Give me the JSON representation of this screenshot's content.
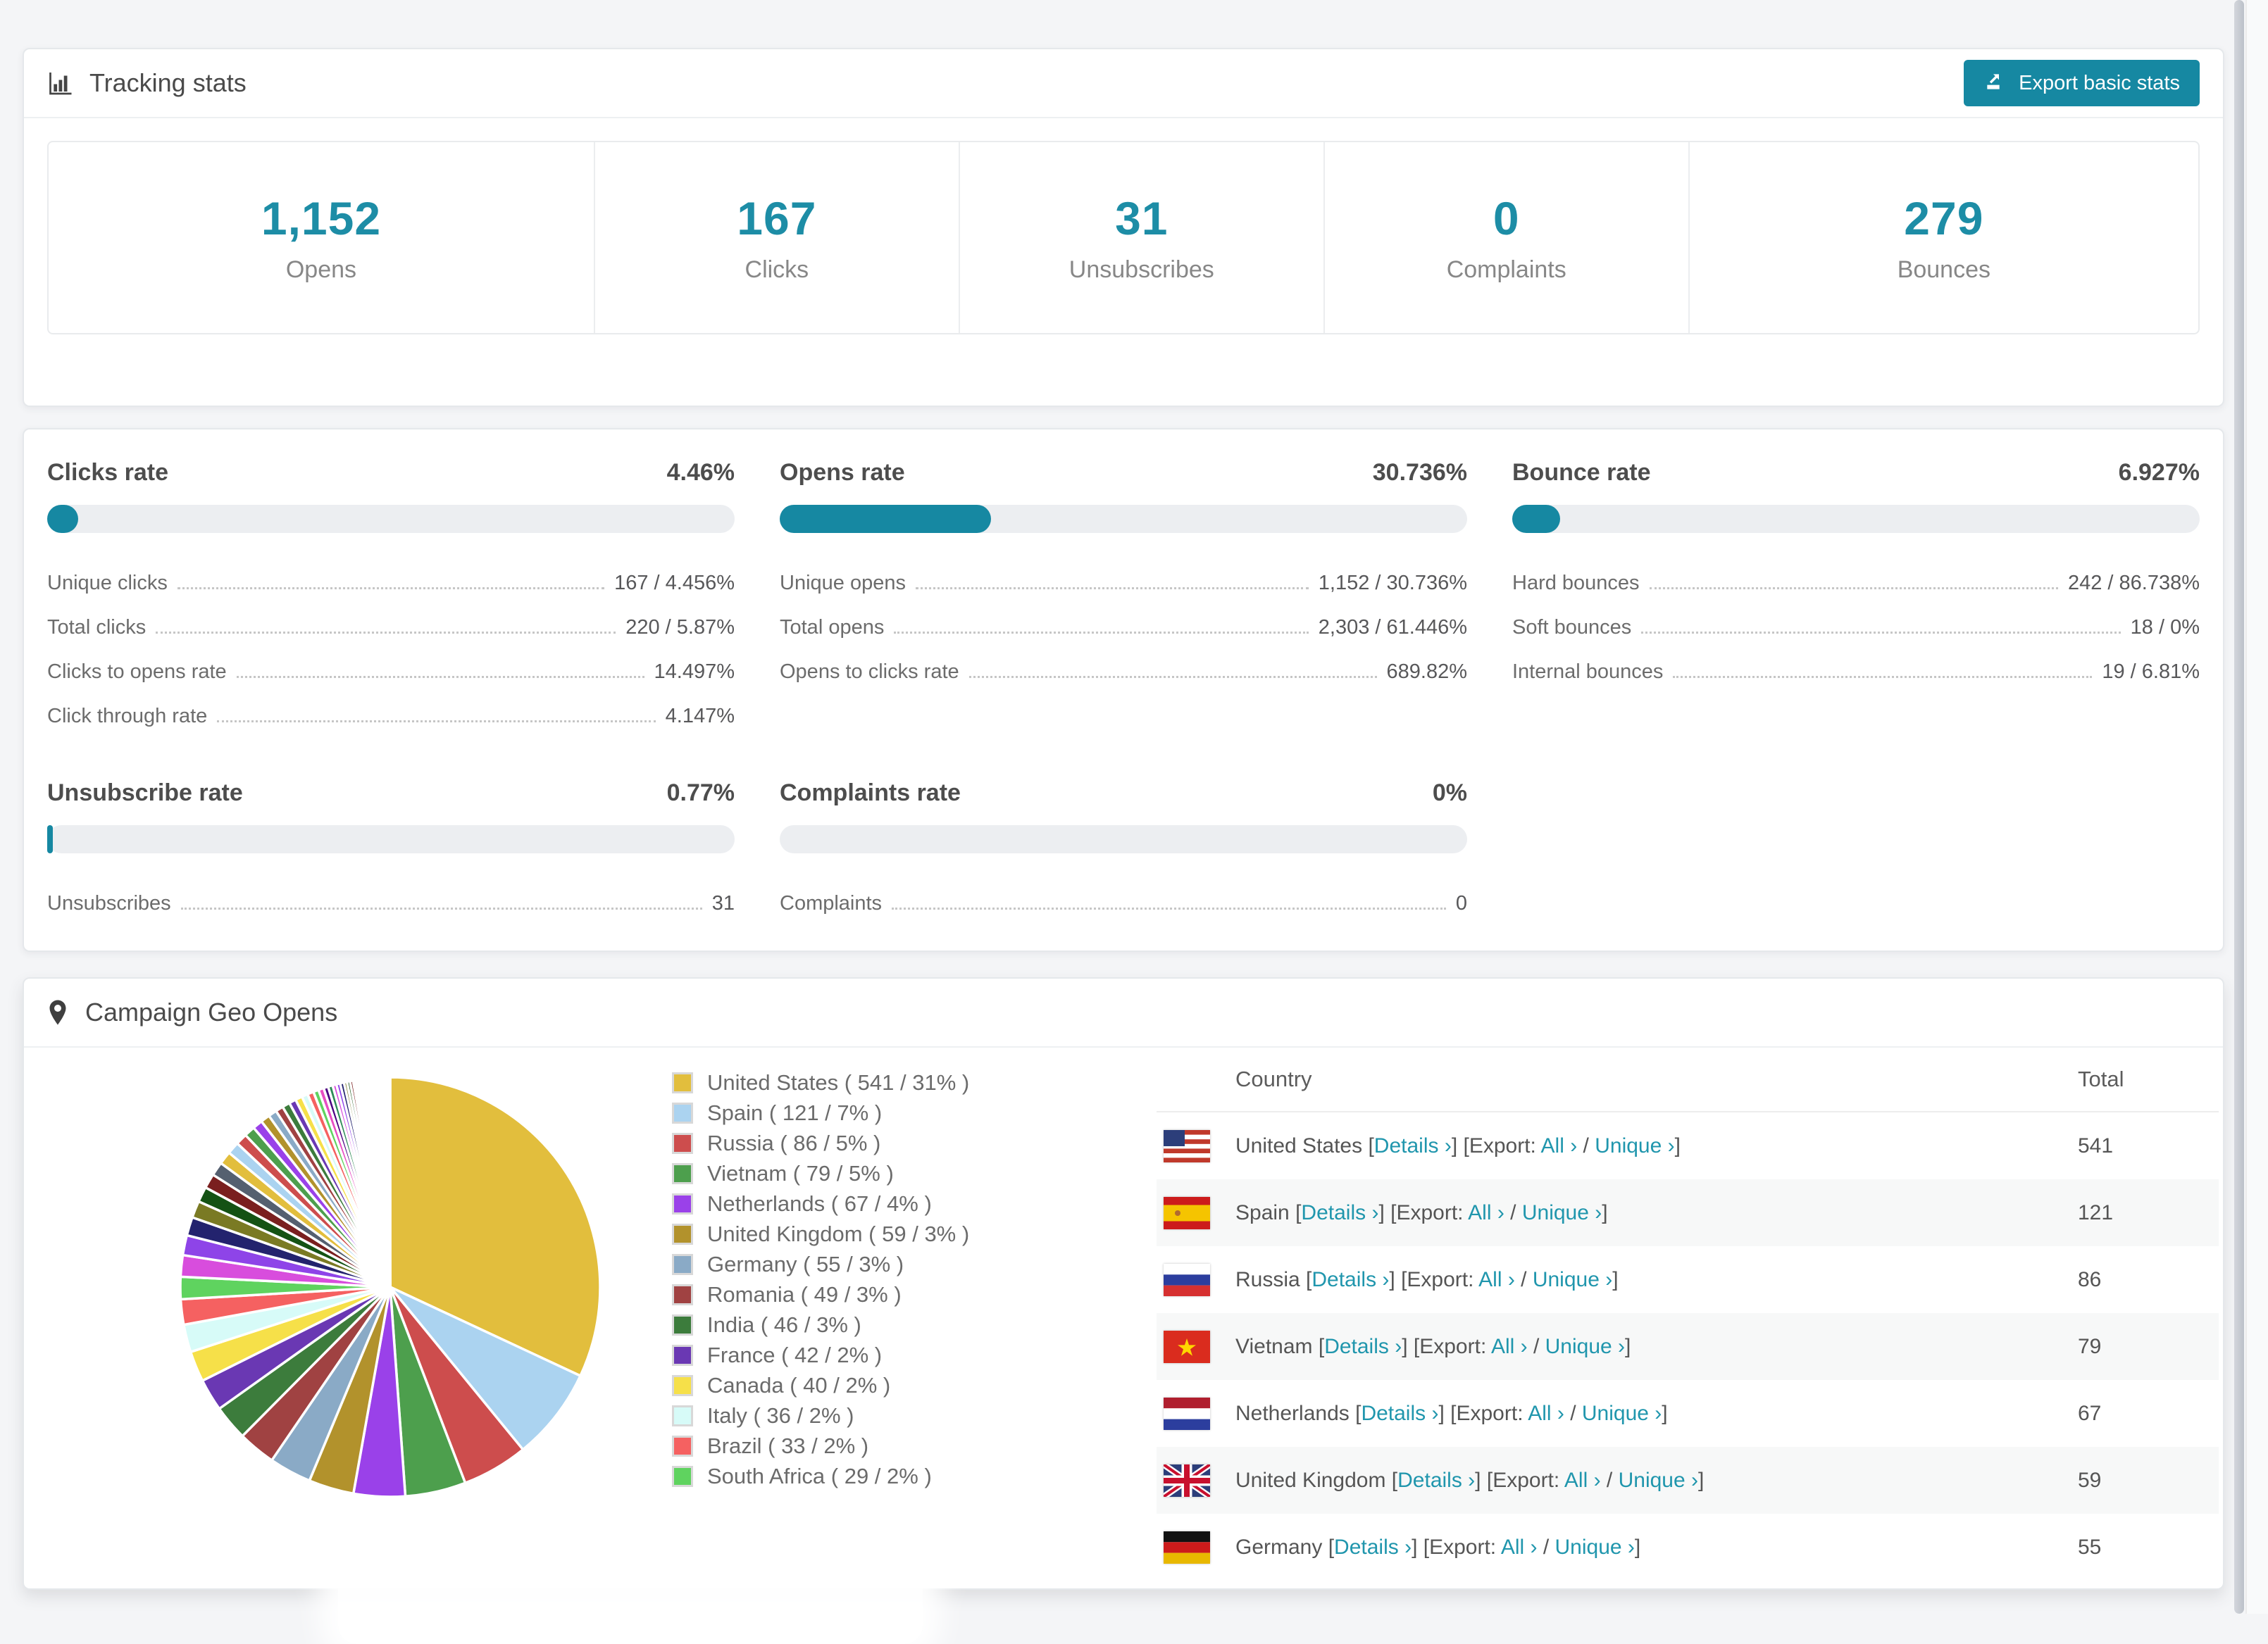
{
  "colors": {
    "accent": "#1688a2",
    "accent_text": "#1d8da6",
    "link": "#2096ad",
    "bar_track": "#eceef1"
  },
  "tracking_stats": {
    "title": "Tracking stats",
    "export_button": "Export basic stats",
    "stats": [
      {
        "value": "1,152",
        "label": "Opens"
      },
      {
        "value": "167",
        "label": "Clicks"
      },
      {
        "value": "31",
        "label": "Unsubscribes"
      },
      {
        "value": "0",
        "label": "Complaints"
      },
      {
        "value": "279",
        "label": "Bounces"
      }
    ]
  },
  "rates": [
    {
      "title": "Clicks rate",
      "value": "4.46%",
      "percent": 4.46,
      "rows": [
        {
          "label": "Unique clicks",
          "value": "167 / 4.456%"
        },
        {
          "label": "Total clicks",
          "value": "220 / 5.87%"
        },
        {
          "label": "Clicks to opens rate",
          "value": "14.497%"
        },
        {
          "label": "Click through rate",
          "value": "4.147%"
        }
      ]
    },
    {
      "title": "Opens rate",
      "value": "30.736%",
      "percent": 30.736,
      "rows": [
        {
          "label": "Unique opens",
          "value": "1,152 / 30.736%"
        },
        {
          "label": "Total opens",
          "value": "2,303 / 61.446%"
        },
        {
          "label": "Opens to clicks rate",
          "value": "689.82%"
        }
      ]
    },
    {
      "title": "Bounce rate",
      "value": "6.927%",
      "percent": 6.927,
      "rows": [
        {
          "label": "Hard bounces",
          "value": "242 / 86.738%"
        },
        {
          "label": "Soft bounces",
          "value": "18 / 0%"
        },
        {
          "label": "Internal bounces",
          "value": "19 / 6.81%"
        }
      ]
    },
    {
      "title": "Unsubscribe rate",
      "value": "0.77%",
      "percent": 0.77,
      "rows": [
        {
          "label": "Unsubscribes",
          "value": "31"
        }
      ]
    },
    {
      "title": "Complaints rate",
      "value": "0%",
      "percent": 0,
      "rows": [
        {
          "label": "Complaints",
          "value": "0"
        }
      ]
    }
  ],
  "geo": {
    "title": "Campaign Geo Opens",
    "chart_data": {
      "type": "pie",
      "title": "Campaign Geo Opens",
      "unit": "opens",
      "start_angle_deg": -90,
      "direction": "clockwise",
      "legend_position": "right",
      "labels": [
        "United States",
        "Spain",
        "Russia",
        "Vietnam",
        "Netherlands",
        "United Kingdom",
        "Germany",
        "Romania",
        "India",
        "France",
        "Canada",
        "Italy",
        "Brazil",
        "South Africa"
      ],
      "values": [
        541,
        121,
        86,
        79,
        67,
        59,
        55,
        49,
        46,
        42,
        40,
        36,
        33,
        29
      ],
      "percents": [
        31,
        7,
        5,
        5,
        4,
        3,
        3,
        3,
        3,
        2,
        2,
        2,
        2,
        2
      ],
      "colors": [
        "#e2be3d",
        "#abd3f0",
        "#cd4d4d",
        "#4d9f4d",
        "#9a41e9",
        "#b2922c",
        "#8aaac6",
        "#a04242",
        "#3c7c3c",
        "#6a38b3",
        "#f6e049",
        "#d7fbf8",
        "#f56161",
        "#5fd35f"
      ],
      "other_slices": {
        "note": "unlabeled small countries forming the thin tail of the pie",
        "values": [
          28,
          26,
          24,
          22,
          20,
          19,
          18,
          17,
          16,
          15,
          14,
          13,
          12,
          11,
          10,
          10,
          9,
          9,
          8,
          8,
          7,
          7,
          6,
          6,
          5,
          5,
          5,
          4,
          4,
          4,
          3,
          3,
          3,
          3,
          3,
          2,
          2,
          2,
          2,
          2,
          2,
          2,
          2,
          1,
          1,
          1,
          1,
          1,
          1,
          1,
          1,
          1,
          1,
          1,
          1,
          1,
          1,
          1,
          1,
          1
        ],
        "colors": [
          "#d84ddd",
          "#8e44e8",
          "#23236e",
          "#7a7a24",
          "#145214",
          "#7a1f1f",
          "#556070",
          "#e2be3d",
          "#abd3f0",
          "#cd4d4d",
          "#4d9f4d",
          "#9a41e9",
          "#b2922c",
          "#8aaac6",
          "#a04242",
          "#3c7c3c",
          "#6a38b3",
          "#f6e049",
          "#d7fbf8",
          "#f56161",
          "#5fd35f",
          "#e84dc3",
          "#4b0082",
          "#2e8b57"
        ]
      }
    },
    "legend": [
      "United States ( 541 / 31% )",
      "Spain ( 121 / 7% )",
      "Russia ( 86 / 5% )",
      "Vietnam ( 79 / 5% )",
      "Netherlands ( 67 / 4% )",
      "United Kingdom ( 59 / 3% )",
      "Germany ( 55 / 3% )",
      "Romania ( 49 / 3% )",
      "India ( 46 / 3% )",
      "France ( 42 / 2% )",
      "Canada ( 40 / 2% )",
      "Italy ( 36 / 2% )",
      "Brazil ( 33 / 2% )",
      "South Africa ( 29 / 2% )"
    ],
    "table": {
      "headers": [
        "Country",
        "Total"
      ],
      "link_labels": {
        "details": "Details ›",
        "export": "Export:",
        "all": "All ›",
        "unique": "Unique ›"
      },
      "rows": [
        {
          "country": "United States",
          "flag": "us",
          "total": "541"
        },
        {
          "country": "Spain",
          "flag": "es",
          "total": "121"
        },
        {
          "country": "Russia",
          "flag": "ru",
          "total": "86"
        },
        {
          "country": "Vietnam",
          "flag": "vn",
          "total": "79"
        },
        {
          "country": "Netherlands",
          "flag": "nl",
          "total": "67"
        },
        {
          "country": "United Kingdom",
          "flag": "gb",
          "total": "59"
        },
        {
          "country": "Germany",
          "flag": "de",
          "total": "55"
        }
      ]
    }
  }
}
